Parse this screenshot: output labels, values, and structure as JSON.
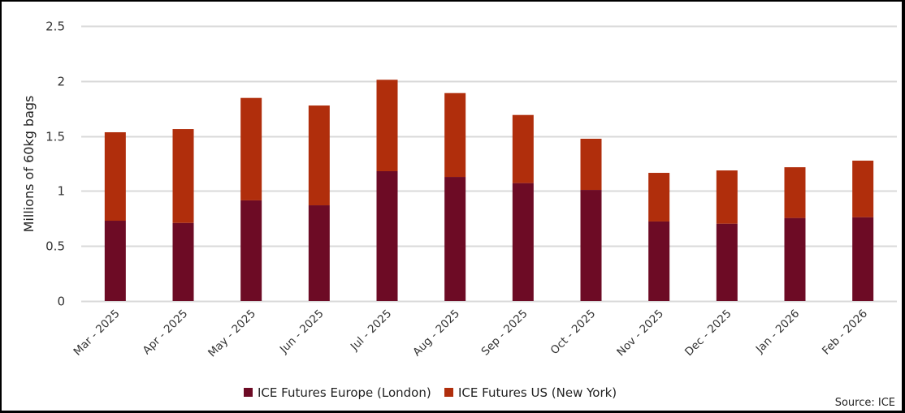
{
  "chart_data": {
    "type": "bar",
    "stacked": true,
    "title": "",
    "xlabel": "",
    "ylabel": "Millions of 60kg bags",
    "ylim": [
      0,
      2.5
    ],
    "yticks": [
      0,
      0.5,
      1,
      1.5,
      2,
      2.5
    ],
    "ytick_labels": [
      "0",
      "0.5",
      "1",
      "1.5",
      "2",
      "2.5"
    ],
    "grid": true,
    "legend_position": "bottom-center",
    "categories": [
      "Mar - 2025",
      "Apr - 2025",
      "May - 2025",
      "Jun - 2025",
      "Jul - 2025",
      "Aug - 2025",
      "Sep - 2025",
      "Oct - 2025",
      "Nov - 2025",
      "Dec - 2025",
      "Jan - 2026",
      "Feb - 2026"
    ],
    "series": [
      {
        "name": "ICE Futures Europe (London)",
        "color": "#6d0b25",
        "values": [
          0.73,
          0.71,
          0.915,
          0.87,
          1.18,
          1.128,
          1.072,
          1.01,
          0.723,
          0.703,
          0.755,
          0.762
        ]
      },
      {
        "name": "ICE Futures US (New York)",
        "color": "#b02e0c",
        "values": [
          0.804,
          0.853,
          0.931,
          0.907,
          0.831,
          0.762,
          0.619,
          0.465,
          0.442,
          0.484,
          0.461,
          0.514
        ]
      }
    ],
    "annotations": [
      "Source: ICE"
    ]
  },
  "source": "Source: ICE",
  "colors": {
    "grid": "#d9d9d9",
    "text": "#333333"
  }
}
